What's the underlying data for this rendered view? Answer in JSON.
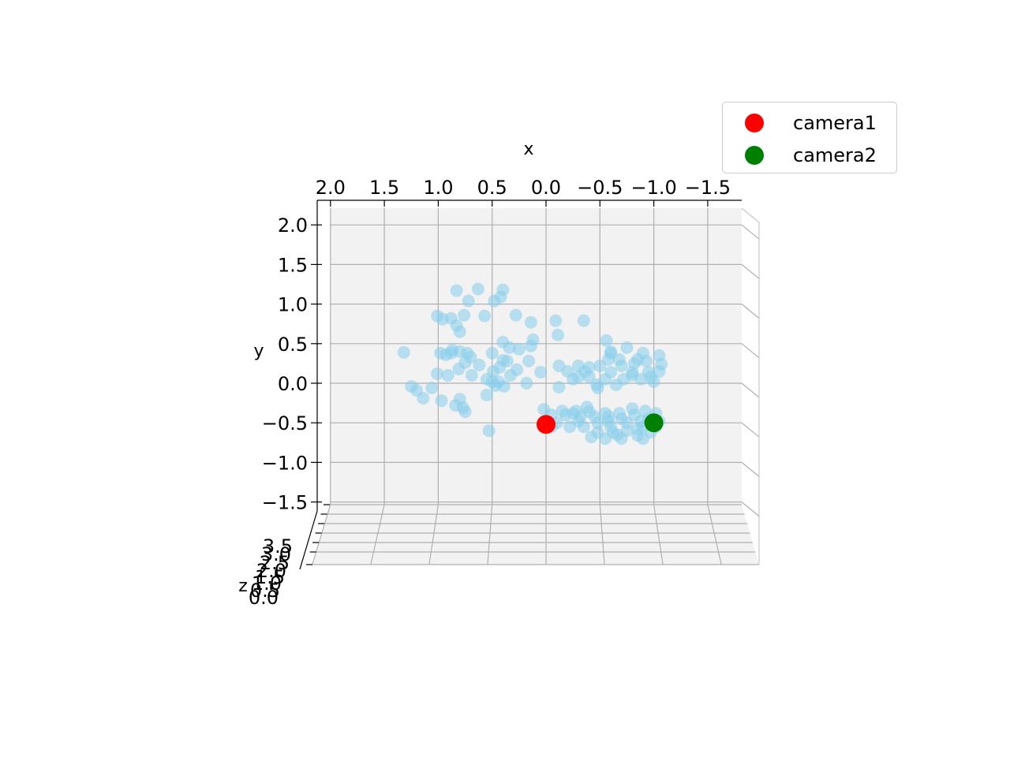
{
  "chart_data": {
    "type": "scatter",
    "view": "3d",
    "xlabel": "x",
    "ylabel": "y",
    "zlabel": "z",
    "x_ticks": [
      "2.0",
      "1.5",
      "1.0",
      "0.5",
      "0.0",
      "−0.5",
      "−1.0",
      "−1.5"
    ],
    "x_tick_values": [
      2.0,
      1.5,
      1.0,
      0.5,
      0.0,
      -0.5,
      -1.0,
      -1.5
    ],
    "y_ticks": [
      "2.0",
      "1.5",
      "1.0",
      "0.5",
      "0.0",
      "−0.5",
      "−1.0",
      "−1.5"
    ],
    "y_tick_values": [
      2.0,
      1.5,
      1.0,
      0.5,
      0.0,
      -0.5,
      -1.0,
      -1.5
    ],
    "z_ticks": [
      "3.5",
      "3.0",
      "2.5",
      "2.0",
      "1.5",
      "1.0",
      "0.5",
      "0.0"
    ],
    "xlim": [
      2.1,
      -1.8
    ],
    "ylim": [
      -1.6,
      2.3
    ],
    "x_inverted": true,
    "grid": true,
    "legend_position": "top-right",
    "series": [
      {
        "name": "",
        "color": "#87ceeb",
        "points": [
          [
            0.83,
            1.17
          ],
          [
            0.63,
            1.19
          ],
          [
            0.4,
            1.18
          ],
          [
            0.72,
            1.04
          ],
          [
            0.48,
            1.04
          ],
          [
            0.42,
            1.09
          ],
          [
            1.01,
            0.85
          ],
          [
            0.88,
            0.82
          ],
          [
            0.76,
            0.86
          ],
          [
            0.57,
            0.85
          ],
          [
            0.28,
            0.86
          ],
          [
            0.14,
            0.77
          ],
          [
            -0.09,
            0.79
          ],
          [
            -0.35,
            0.79
          ],
          [
            -0.11,
            0.61
          ],
          [
            -0.56,
            0.54
          ],
          [
            0.96,
            0.81
          ],
          [
            0.83,
            0.73
          ],
          [
            0.8,
            0.65
          ],
          [
            1.32,
            0.39
          ],
          [
            0.87,
            0.42
          ],
          [
            0.8,
            0.4
          ],
          [
            0.73,
            0.38
          ],
          [
            0.5,
            0.38
          ],
          [
            0.4,
            0.52
          ],
          [
            0.34,
            0.45
          ],
          [
            0.14,
            0.47
          ],
          [
            0.12,
            0.55
          ],
          [
            0.7,
            0.33
          ],
          [
            0.98,
            0.38
          ],
          [
            0.93,
            0.36
          ],
          [
            0.88,
            0.38
          ],
          [
            0.4,
            0.29
          ],
          [
            0.36,
            0.28
          ],
          [
            0.16,
            0.28
          ],
          [
            0.75,
            0.26
          ],
          [
            0.62,
            0.23
          ],
          [
            0.81,
            0.18
          ],
          [
            0.27,
            0.17
          ],
          [
            0.49,
            0.15
          ],
          [
            0.43,
            0.2
          ],
          [
            0.33,
            0.1
          ],
          [
            1.01,
            0.12
          ],
          [
            0.91,
            0.1
          ],
          [
            0.69,
            0.1
          ],
          [
            0.5,
            0.02
          ],
          [
            0.44,
            0.02
          ],
          [
            1.25,
            -0.04
          ],
          [
            1.2,
            -0.09
          ],
          [
            1.06,
            -0.06
          ],
          [
            1.14,
            -0.19
          ],
          [
            0.97,
            -0.22
          ],
          [
            0.8,
            -0.2
          ],
          [
            0.84,
            -0.28
          ],
          [
            0.77,
            -0.31
          ],
          [
            0.75,
            -0.36
          ],
          [
            0.55,
            -0.15
          ],
          [
            0.39,
            -0.04
          ],
          [
            0.47,
            -0.03
          ],
          [
            0.55,
            0.05
          ],
          [
            0.25,
            0.43
          ],
          [
            0.05,
            0.14
          ],
          [
            0.53,
            -0.6
          ],
          [
            0.02,
            -0.33
          ],
          [
            -0.12,
            -0.05
          ],
          [
            0.18,
            0.0
          ],
          [
            -0.3,
            0.22
          ],
          [
            -0.5,
            0.22
          ],
          [
            -0.6,
            0.14
          ],
          [
            -0.7,
            0.22
          ],
          [
            -0.8,
            0.14
          ],
          [
            -0.95,
            0.14
          ],
          [
            -1.07,
            0.24
          ],
          [
            -1.05,
            0.35
          ],
          [
            -0.9,
            0.38
          ],
          [
            -0.75,
            0.45
          ],
          [
            -0.6,
            0.38
          ],
          [
            -0.85,
            0.3
          ],
          [
            -1.0,
            0.02
          ],
          [
            -0.8,
            0.1
          ],
          [
            -0.65,
            -0.02
          ],
          [
            -0.47,
            -0.02
          ],
          [
            -0.3,
            0.08
          ],
          [
            -0.2,
            0.15
          ],
          [
            -0.4,
            0.08
          ],
          [
            -0.55,
            0.05
          ],
          [
            -0.72,
            0.05
          ],
          [
            -0.88,
            0.05
          ],
          [
            -0.97,
            0.08
          ],
          [
            -0.82,
            0.25
          ],
          [
            -0.58,
            0.3
          ],
          [
            -0.4,
            0.2
          ],
          [
            -0.25,
            0.05
          ],
          [
            -0.12,
            0.22
          ],
          [
            -0.48,
            -0.06
          ],
          [
            -0.36,
            0.15
          ],
          [
            -0.68,
            0.3
          ],
          [
            -0.93,
            0.28
          ],
          [
            -1.05,
            0.15
          ],
          [
            -0.6,
            0.4
          ],
          [
            -0.18,
            -0.4
          ],
          [
            -0.32,
            -0.42
          ],
          [
            -0.45,
            -0.42
          ],
          [
            -0.58,
            -0.42
          ],
          [
            -0.7,
            -0.45
          ],
          [
            -0.82,
            -0.4
          ],
          [
            -0.95,
            -0.45
          ],
          [
            -1.05,
            -0.48
          ],
          [
            -0.9,
            -0.55
          ],
          [
            -0.75,
            -0.6
          ],
          [
            -0.62,
            -0.62
          ],
          [
            -0.48,
            -0.62
          ],
          [
            -0.35,
            -0.55
          ],
          [
            -0.22,
            -0.55
          ],
          [
            -0.1,
            -0.5
          ],
          [
            -0.05,
            -0.4
          ],
          [
            -0.15,
            -0.35
          ],
          [
            -0.28,
            -0.35
          ],
          [
            -0.4,
            -0.36
          ],
          [
            -0.55,
            -0.38
          ],
          [
            -0.68,
            -0.38
          ],
          [
            -0.8,
            -0.32
          ],
          [
            -0.92,
            -0.35
          ],
          [
            -1.02,
            -0.38
          ],
          [
            -0.85,
            -0.66
          ],
          [
            -0.7,
            -0.7
          ],
          [
            -0.55,
            -0.7
          ],
          [
            -0.42,
            -0.68
          ],
          [
            -0.9,
            -0.7
          ],
          [
            -0.97,
            -0.62
          ],
          [
            -0.6,
            -0.55
          ],
          [
            -0.3,
            -0.48
          ],
          [
            -0.48,
            -0.5
          ],
          [
            -0.75,
            -0.5
          ],
          [
            -0.88,
            -0.48
          ],
          [
            -1.02,
            -0.55
          ],
          [
            -0.66,
            -0.65
          ],
          [
            -0.25,
            -0.38
          ],
          [
            -0.38,
            -0.3
          ],
          [
            -0.05,
            -0.55
          ],
          [
            -0.85,
            -0.58
          ],
          [
            -0.58,
            -0.48
          ]
        ]
      },
      {
        "name": "camera1",
        "color": "#ff0000",
        "points": [
          [
            0.0,
            -0.52
          ]
        ]
      },
      {
        "name": "camera2",
        "color": "#008000",
        "points": [
          [
            -1.0,
            -0.5
          ]
        ]
      }
    ]
  },
  "legend": [
    {
      "label": "camera1",
      "color": "#ff0000"
    },
    {
      "label": "camera2",
      "color": "#008000"
    }
  ]
}
